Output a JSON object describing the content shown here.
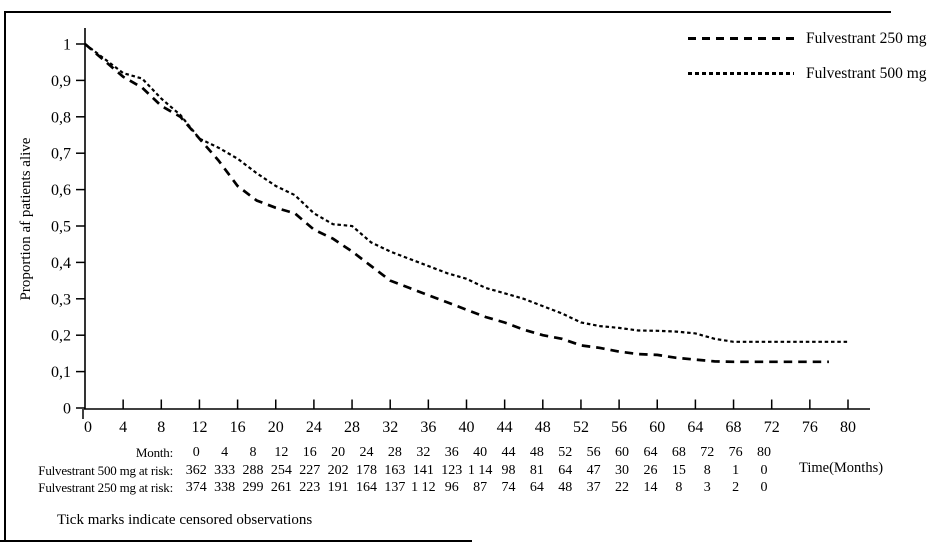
{
  "colors": {
    "ink": "#000000",
    "background": "#ffffff"
  },
  "legend": {
    "items": [
      {
        "label": "Fulvestrant 250 mg",
        "dash": "long"
      },
      {
        "label": "Fulvestrant 500 mg",
        "dash": "fine"
      }
    ]
  },
  "chart_data": {
    "type": "line",
    "subtype": "kaplan-meier-survival",
    "title": "",
    "ylabel": "Proportion af patients alive",
    "xlabel": "Time(Months)",
    "xlim": [
      0,
      80
    ],
    "ylim": [
      0,
      1
    ],
    "grid": false,
    "legend_position": "top-right",
    "x_ticks": [
      0,
      4,
      8,
      12,
      16,
      20,
      24,
      28,
      32,
      36,
      40,
      44,
      48,
      52,
      56,
      60,
      64,
      68,
      72,
      76,
      80
    ],
    "y_tick_values": [
      0,
      0.1,
      0.2,
      0.3,
      0.4,
      0.5,
      0.6,
      0.7,
      0.8,
      0.9,
      1
    ],
    "y_tick_labels": [
      "0",
      "0,1",
      "0,2",
      "0,3",
      "0,4",
      "0,5",
      "0,6",
      "0,7",
      "0,8",
      "0,9",
      "1"
    ],
    "series": [
      {
        "name": "Fulvestrant 500 mg",
        "dash": "fine",
        "x": [
          0,
          2,
          4,
          6,
          8,
          10,
          12,
          14,
          16,
          18,
          20,
          22,
          24,
          26,
          28,
          30,
          32,
          34,
          36,
          38,
          40,
          42,
          44,
          46,
          48,
          50,
          52,
          54,
          56,
          58,
          60,
          62,
          64,
          66,
          68,
          70,
          72,
          74,
          76,
          78,
          80
        ],
        "y": [
          1.0,
          0.96,
          0.92,
          0.905,
          0.85,
          0.805,
          0.74,
          0.715,
          0.685,
          0.645,
          0.61,
          0.585,
          0.535,
          0.505,
          0.5,
          0.455,
          0.43,
          0.41,
          0.39,
          0.37,
          0.355,
          0.33,
          0.315,
          0.3,
          0.28,
          0.26,
          0.235,
          0.225,
          0.22,
          0.213,
          0.212,
          0.21,
          0.205,
          0.19,
          0.182,
          0.182,
          0.182,
          0.182,
          0.182,
          0.182,
          0.182
        ]
      },
      {
        "name": "Fulvestrant 250 mg",
        "dash": "long",
        "x": [
          0,
          2,
          4,
          6,
          8,
          10,
          12,
          14,
          16,
          18,
          20,
          22,
          24,
          26,
          28,
          30,
          32,
          34,
          36,
          38,
          40,
          42,
          44,
          46,
          48,
          50,
          52,
          54,
          56,
          58,
          60,
          62,
          64,
          66,
          68,
          70,
          72,
          74,
          76,
          78
        ],
        "y": [
          1.0,
          0.955,
          0.91,
          0.88,
          0.83,
          0.8,
          0.74,
          0.68,
          0.61,
          0.57,
          0.55,
          0.535,
          0.49,
          0.465,
          0.43,
          0.39,
          0.35,
          0.33,
          0.31,
          0.29,
          0.27,
          0.25,
          0.235,
          0.215,
          0.2,
          0.19,
          0.172,
          0.165,
          0.155,
          0.148,
          0.146,
          0.138,
          0.133,
          0.128,
          0.127,
          0.127,
          0.127,
          0.127,
          0.127,
          0.127
        ]
      }
    ]
  },
  "risk_table": {
    "month_label": "Month:",
    "months": [
      "0",
      "4",
      "8",
      "12",
      "16",
      "20",
      "24",
      "28",
      "32",
      "36",
      "40",
      "44",
      "48",
      "52",
      "56",
      "60",
      "64",
      "68",
      "72",
      "76",
      "80"
    ],
    "rows": [
      {
        "label": "Fulvestrant 500 mg at risk:",
        "values": [
          "362",
          "333",
          "288",
          "254",
          "227",
          "202",
          "178",
          "163",
          "141",
          "123",
          "1 14",
          "98",
          "81",
          "64",
          "47",
          "30",
          "26",
          "15",
          "8",
          "1",
          "0"
        ]
      },
      {
        "label": "Fulvestrant 250 mg at risk:",
        "values": [
          "374",
          "338",
          "299",
          "261",
          "223",
          "191",
          "164",
          "137",
          "1 12",
          "96",
          "87",
          "74",
          "64",
          "48",
          "37",
          "22",
          "14",
          "8",
          "3",
          "2",
          "0"
        ]
      }
    ],
    "time_label": "Time(Months)"
  },
  "footnote": "Tick marks indicate censored observations"
}
